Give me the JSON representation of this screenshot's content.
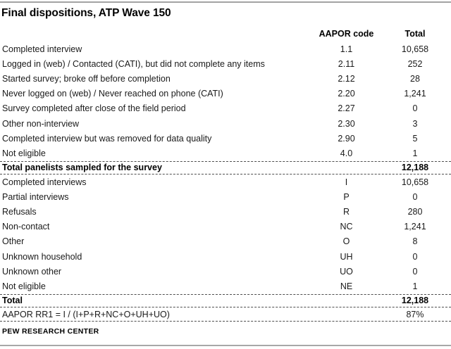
{
  "title": "Final dispositions, ATP Wave 150",
  "colors": {
    "text": "#1a1a1a",
    "rule_gray": "#a3a3a3",
    "dashed_line": "#4e4e4e"
  },
  "table": {
    "header": {
      "code": "AAPOR code",
      "total": "Total"
    },
    "dispositions": [
      {
        "label": "Completed interview",
        "code": "1.1",
        "total": "10,658"
      },
      {
        "label": "Logged in (web) / Contacted (CATI), but did not complete any items",
        "code": "2.11",
        "total": "252"
      },
      {
        "label": "Started survey; broke off before completion",
        "code": "2.12",
        "total": "28"
      },
      {
        "label": "Never logged on (web) / Never reached on phone (CATI)",
        "code": "2.20",
        "total": "1,241"
      },
      {
        "label": "Survey completed after close of the field period",
        "code": "2.27",
        "total": "0"
      },
      {
        "label": "Other non-interview",
        "code": "2.30",
        "total": "3"
      },
      {
        "label": "Completed interview but was removed for data quality",
        "code": "2.90",
        "total": "5"
      },
      {
        "label": "Not eligible",
        "code": "4.0",
        "total": "1"
      }
    ],
    "sampled_total": {
      "label": "Total panelists sampled for the survey",
      "code": "",
      "total": "12,188"
    },
    "aapor_categories": [
      {
        "label": "Completed interviews",
        "code": "I",
        "total": "10,658"
      },
      {
        "label": "Partial interviews",
        "code": "P",
        "total": "0"
      },
      {
        "label": "Refusals",
        "code": "R",
        "total": "280"
      },
      {
        "label": "Non-contact",
        "code": "NC",
        "total": "1,241"
      },
      {
        "label": "Other",
        "code": "O",
        "total": "8"
      },
      {
        "label": "Unknown household",
        "code": "UH",
        "total": "0"
      },
      {
        "label": "Unknown other",
        "code": "UO",
        "total": "0"
      },
      {
        "label": "Not eligible",
        "code": "NE",
        "total": "1"
      }
    ],
    "grand_total": {
      "label": "Total",
      "code": "",
      "total": "12,188"
    },
    "response_rate": {
      "label": "AAPOR RR1 = I / (I+P+R+NC+O+UH+UO)",
      "code": "",
      "total": "87%"
    }
  },
  "footer": "PEW RESEARCH CENTER"
}
